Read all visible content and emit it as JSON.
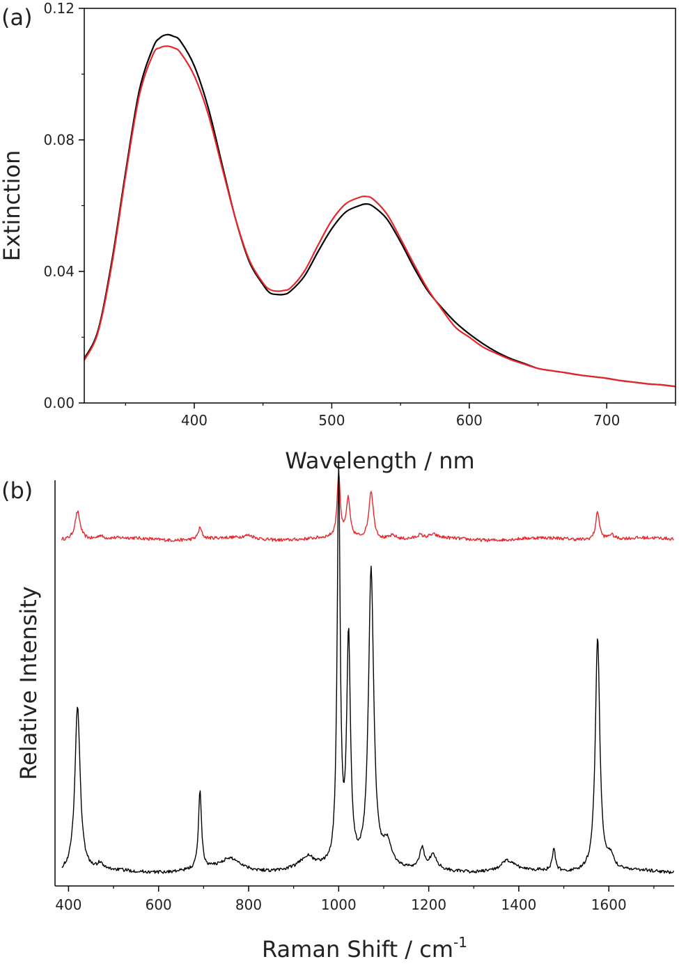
{
  "chart_data": [
    {
      "panel_label": "(a)",
      "type": "line",
      "title": "",
      "xlabel": "Wavelength / nm",
      "ylabel": "Extinction",
      "xlim": [
        320,
        750
      ],
      "ylim": [
        0,
        0.12
      ],
      "x_ticks": [
        400,
        500,
        600,
        700
      ],
      "y_ticks": [
        0.0,
        0.04,
        0.08,
        0.12
      ],
      "x_tick_labels": [
        "400",
        "500",
        "600",
        "700"
      ],
      "y_tick_labels": [
        "0.00",
        "0.04",
        "0.08",
        "0.12"
      ],
      "grid": false,
      "series": [
        {
          "color": "#000000",
          "x": [
            320,
            330,
            340,
            350,
            360,
            370,
            375,
            380,
            385,
            390,
            400,
            410,
            420,
            430,
            440,
            450,
            455,
            460,
            465,
            470,
            480,
            490,
            500,
            510,
            520,
            525,
            530,
            540,
            550,
            560,
            570,
            580,
            590,
            600,
            610,
            620,
            630,
            640,
            650,
            660,
            670,
            680,
            690,
            700,
            710,
            720,
            730,
            740,
            750
          ],
          "y": [
            0.0135,
            0.022,
            0.043,
            0.07,
            0.095,
            0.108,
            0.111,
            0.112,
            0.1115,
            0.11,
            0.1025,
            0.09,
            0.073,
            0.056,
            0.043,
            0.036,
            0.0335,
            0.033,
            0.033,
            0.034,
            0.0385,
            0.046,
            0.053,
            0.058,
            0.06,
            0.0605,
            0.0598,
            0.056,
            0.049,
            0.041,
            0.034,
            0.029,
            0.0245,
            0.021,
            0.018,
            0.0155,
            0.0135,
            0.012,
            0.0105,
            0.0098,
            0.0092,
            0.0085,
            0.008,
            0.0075,
            0.0068,
            0.0063,
            0.0058,
            0.0055,
            0.005
          ]
        },
        {
          "color": "#e8262a",
          "x": [
            320,
            330,
            340,
            350,
            360,
            370,
            375,
            380,
            385,
            390,
            400,
            410,
            420,
            430,
            440,
            450,
            455,
            460,
            465,
            470,
            480,
            490,
            500,
            510,
            520,
            525,
            530,
            540,
            550,
            560,
            570,
            580,
            590,
            600,
            610,
            620,
            630,
            640,
            650,
            660,
            670,
            680,
            690,
            700,
            710,
            720,
            730,
            740,
            750
          ],
          "y": [
            0.013,
            0.0215,
            0.042,
            0.069,
            0.0935,
            0.106,
            0.108,
            0.1085,
            0.108,
            0.1065,
            0.0995,
            0.088,
            0.072,
            0.056,
            0.0435,
            0.0365,
            0.0345,
            0.034,
            0.0342,
            0.035,
            0.04,
            0.048,
            0.0555,
            0.0605,
            0.0625,
            0.0628,
            0.062,
            0.0575,
            0.05,
            0.042,
            0.0345,
            0.0285,
            0.023,
            0.02,
            0.017,
            0.015,
            0.0132,
            0.0118,
            0.0105,
            0.0098,
            0.0092,
            0.0085,
            0.008,
            0.0075,
            0.0068,
            0.0063,
            0.0058,
            0.0055,
            0.005
          ]
        }
      ]
    },
    {
      "panel_label": "(b)",
      "type": "line",
      "title": "",
      "xlabel": "Raman Shift / cm",
      "xlabel_sup": "-1",
      "ylabel": "Relative Intensity",
      "xlim": [
        370,
        1745
      ],
      "ylim": [
        0,
        1
      ],
      "x_ticks": [
        400,
        600,
        800,
        1000,
        1200,
        1400,
        1600
      ],
      "x_tick_labels": [
        "400",
        "600",
        "800",
        "1000",
        "1200",
        "1400",
        "1600"
      ],
      "y_ticks_shown": false,
      "grid": false,
      "series": [
        {
          "color": "#e8262a",
          "offset": 0.855,
          "start": 385,
          "peaks": [
            [
              420,
              0.07,
              7
            ],
            [
              470,
              0.008,
              6
            ],
            [
              692,
              0.028,
              5
            ],
            [
              800,
              0.008,
              15
            ],
            [
              1000,
              0.16,
              4
            ],
            [
              1021,
              0.095,
              5
            ],
            [
              1072,
              0.12,
              6
            ],
            [
              1120,
              0.01,
              10
            ],
            [
              1180,
              0.008,
              8
            ],
            [
              1210,
              0.008,
              10
            ],
            [
              1575,
              0.07,
              5
            ],
            [
              1605,
              0.012,
              8
            ]
          ]
        },
        {
          "color": "#000000",
          "offset": 0.035,
          "start": 385,
          "peaks": [
            [
              420,
              0.41,
              7
            ],
            [
              470,
              0.015,
              6
            ],
            [
              692,
              0.195,
              4
            ],
            [
              760,
              0.03,
              30
            ],
            [
              930,
              0.03,
              20
            ],
            [
              1000,
              0.97,
              4
            ],
            [
              1022,
              0.56,
              5
            ],
            [
              1072,
              0.74,
              7
            ],
            [
              1108,
              0.06,
              12
            ],
            [
              1185,
              0.05,
              6
            ],
            [
              1210,
              0.035,
              10
            ],
            [
              1375,
              0.025,
              18
            ],
            [
              1478,
              0.055,
              4
            ],
            [
              1575,
              0.58,
              6
            ],
            [
              1605,
              0.03,
              8
            ]
          ]
        }
      ]
    }
  ]
}
